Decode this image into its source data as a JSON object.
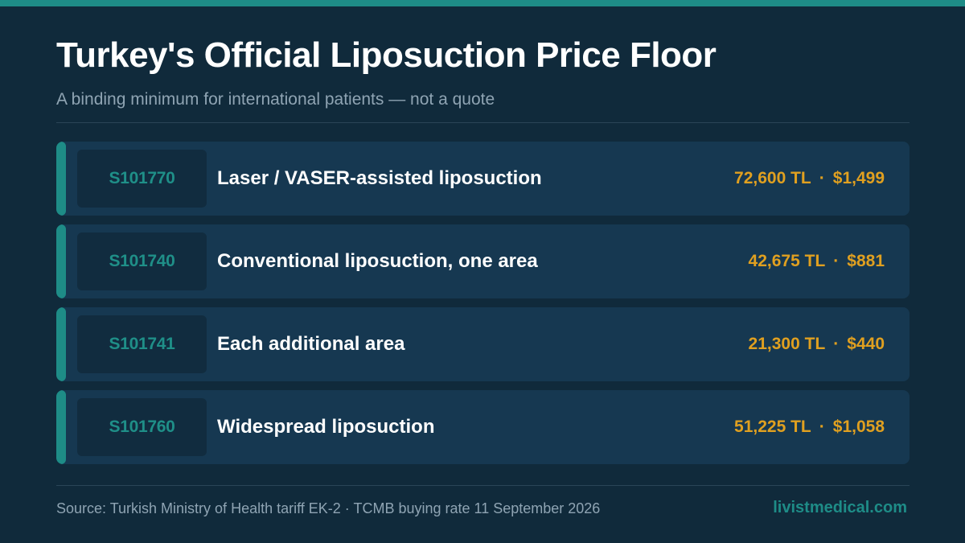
{
  "header": {
    "title": "Turkey's Official Liposuction Price Floor",
    "subtitle": "A binding minimum for international patients — not a quote"
  },
  "rows": [
    {
      "code": "S101770",
      "name": "Laser / VASER-assisted liposuction",
      "price_tl": "72,600 TL",
      "separator": "·",
      "price_usd": "$1,499"
    },
    {
      "code": "S101740",
      "name": "Conventional liposuction, one area",
      "price_tl": "42,675 TL",
      "separator": "·",
      "price_usd": "$881"
    },
    {
      "code": "S101741",
      "name": "Each additional area",
      "price_tl": "21,300 TL",
      "separator": "·",
      "price_usd": "$440"
    },
    {
      "code": "S101760",
      "name": "Widespread liposuction",
      "price_tl": "51,225 TL",
      "separator": "·",
      "price_usd": "$1,058"
    }
  ],
  "footer": {
    "source": "Source: Turkish Ministry of Health tariff EK-2 · TCMB buying rate 11 September 2026",
    "brand": "livistmedical.com"
  },
  "colors": {
    "background": "#102a3b",
    "accent_teal": "#1e8c87",
    "price_gold": "#e0a020",
    "row_background": "#163851"
  }
}
